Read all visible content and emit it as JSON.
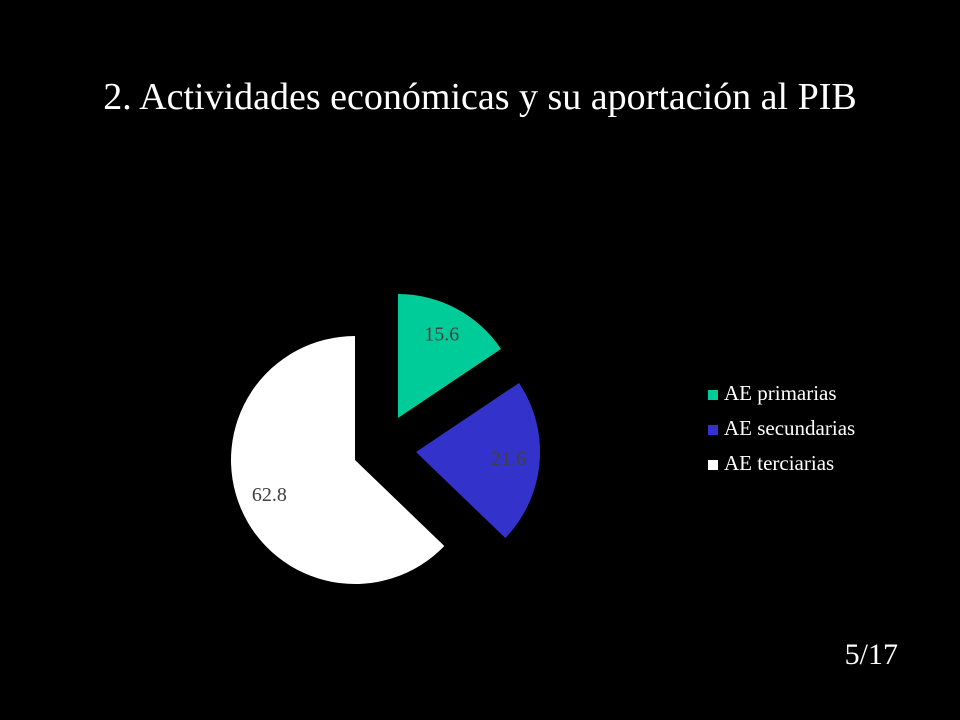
{
  "chart_data": {
    "type": "pie",
    "title": "2. Actividades económicas y su aportación al PIB",
    "categories": [
      "AE primarias",
      "AE secundarias",
      "AE terciarias"
    ],
    "values": [
      15.6,
      21.6,
      62.8
    ],
    "colors": [
      "#00cc99",
      "#3333cc",
      "#ffffff"
    ],
    "legend": "right"
  },
  "slide_number": "5/17"
}
